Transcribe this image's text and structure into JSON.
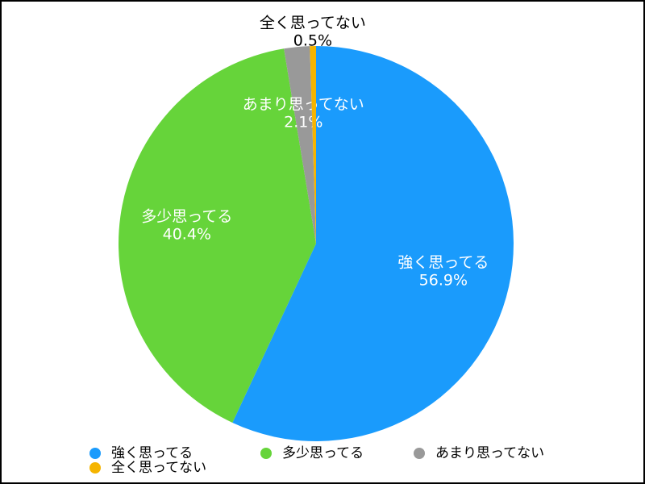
{
  "chart_data": {
    "type": "pie",
    "categories": [
      "強く思ってる",
      "多少思ってる",
      "あまり思ってない",
      "全く思ってない"
    ],
    "values": [
      56.9,
      40.4,
      2.1,
      0.5
    ],
    "value_labels": [
      "56.9%",
      "40.4%",
      "2.1%",
      "0.5%"
    ],
    "colors": [
      "#1a9bfc",
      "#66d43a",
      "#999999",
      "#f5b400"
    ],
    "legend": "bottom"
  }
}
